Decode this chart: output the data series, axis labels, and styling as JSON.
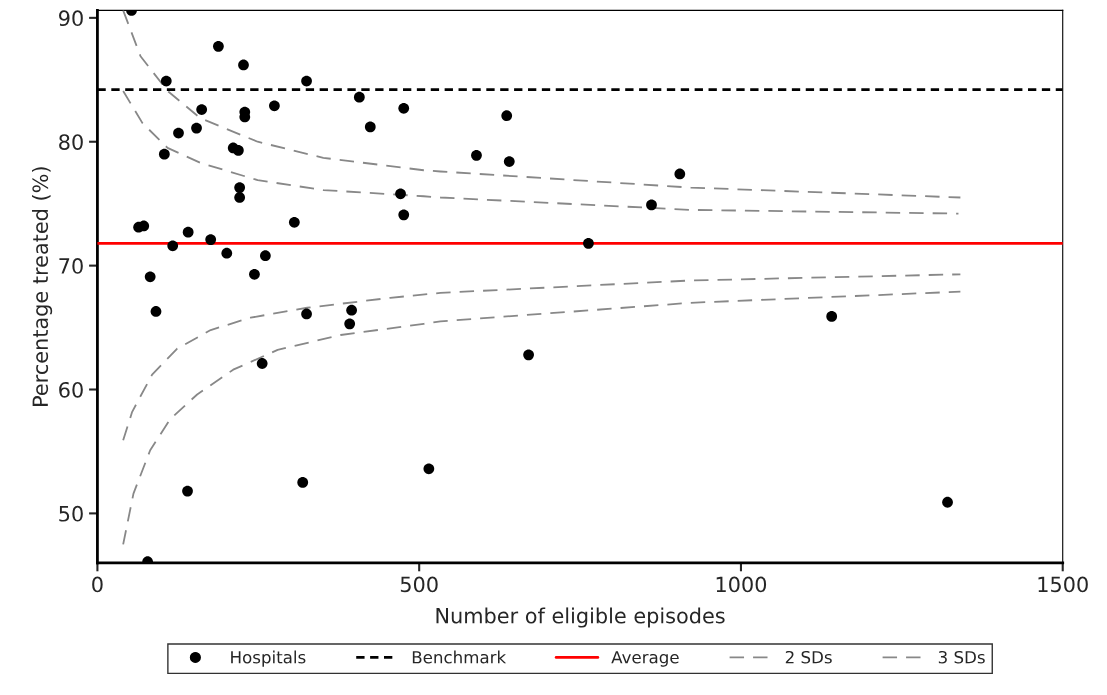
{
  "chart_data": {
    "type": "scatter",
    "xlabel": "Number of eligible episodes",
    "ylabel": "Percentage treated (%)",
    "xlim": [
      0,
      1500
    ],
    "xticks": [
      0,
      500,
      1000,
      1500
    ],
    "ylim": [
      46,
      90.6
    ],
    "yticks": [
      50,
      60,
      70,
      80,
      90
    ],
    "grid": false,
    "legend": "bottom",
    "marker": "circle",
    "ref_lines": [
      {
        "axis": "y",
        "value": 84.2,
        "label": "Benchmark",
        "color": "#000000",
        "line_style": "dotted"
      },
      {
        "axis": "y",
        "value": 71.8,
        "label": "Average",
        "color": "#ff0000",
        "line_style": "solid"
      }
    ],
    "series": [
      {
        "name": "Hospitals",
        "color": "#000000",
        "x": [
          53,
          107,
          188,
          227,
          325,
          407,
          476,
          636,
          162,
          229,
          229,
          275,
          126,
          154,
          424,
          211,
          219,
          104,
          589,
          640,
          905,
          221,
          221,
          471,
          476,
          861,
          64,
          72,
          141,
          306,
          176,
          117,
          763,
          201,
          261,
          82,
          244,
          91,
          325,
          395,
          392,
          256,
          670,
          1141,
          140,
          319,
          515,
          1321,
          78
        ],
        "values": [
          90.6,
          84.9,
          87.7,
          86.2,
          84.9,
          83.6,
          82.7,
          82.1,
          82.6,
          82.4,
          82.0,
          82.9,
          80.7,
          81.1,
          81.2,
          79.5,
          79.3,
          79.0,
          78.9,
          78.4,
          77.4,
          76.3,
          75.5,
          75.8,
          74.1,
          74.9,
          73.1,
          73.2,
          72.7,
          73.5,
          72.1,
          71.6,
          71.8,
          71.0,
          70.8,
          69.1,
          69.3,
          66.3,
          66.1,
          66.4,
          65.3,
          62.1,
          62.8,
          65.9,
          51.8,
          52.5,
          53.6,
          50.9,
          46.1
        ]
      },
      {
        "name": "2 SDs",
        "type": "line",
        "color": "#888888",
        "line_style": "dashed",
        "marker": "none",
        "x": [
          40,
          70,
          109,
          160,
          249,
          351,
          507,
          533,
          922,
          1338
        ],
        "values": [
          84.1,
          81.5,
          79.5,
          78.3,
          76.9,
          76.1,
          75.6,
          75.5,
          74.5,
          74.2
        ]
      },
      {
        "type": "line",
        "color": "#888888",
        "line_style": "dashed",
        "marker": "none",
        "x": [
          40,
          54,
          85,
          124,
          176,
          238,
          326,
          455,
          533,
          922,
          1341
        ],
        "values": [
          55.9,
          58.2,
          61.2,
          63.3,
          64.8,
          65.8,
          66.6,
          67.4,
          67.8,
          68.8,
          69.3
        ]
      },
      {
        "name": "3 SDs",
        "type": "line",
        "color": "#888888",
        "line_style": "dashed",
        "marker": "none",
        "x": [
          40,
          67,
          109,
          160,
          249,
          351,
          507,
          533,
          922,
          1341
        ],
        "values": [
          90.6,
          86.9,
          84.1,
          81.9,
          80.0,
          78.7,
          77.7,
          77.6,
          76.3,
          75.5
        ]
      },
      {
        "type": "line",
        "color": "#888888",
        "line_style": "dashed",
        "marker": "none",
        "x": [
          40,
          56,
          82,
          113,
          155,
          211,
          280,
          378,
          507,
          533,
          922,
          1341
        ],
        "values": [
          47.5,
          51.6,
          55.1,
          57.6,
          59.6,
          61.6,
          63.2,
          64.4,
          65.3,
          65.5,
          67.0,
          67.9
        ]
      }
    ]
  }
}
